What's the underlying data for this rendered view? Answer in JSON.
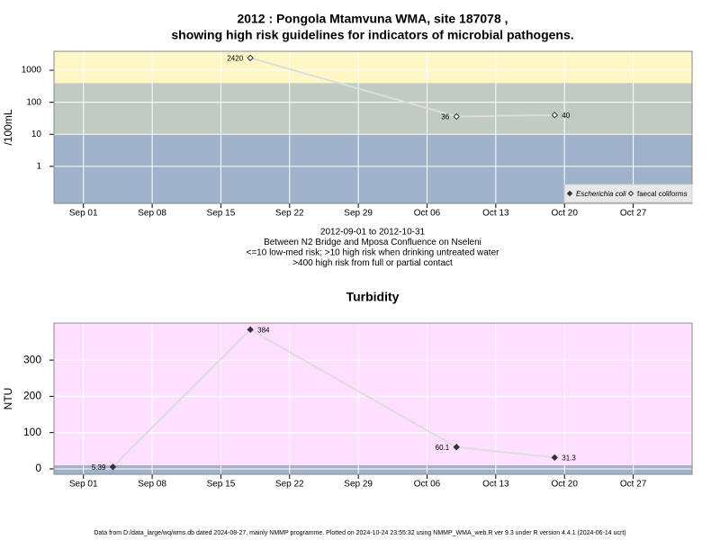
{
  "chart_data": [
    {
      "type": "line",
      "title": [
        "2012 : Pongola Mtamvuna WMA, site 187078 ,",
        "showing high risk guidelines for indicators of microbial pathogens."
      ],
      "ylabel": "/100mL",
      "log_scale": true,
      "grid": true,
      "legend": "bottom right",
      "x": [
        "2012-09-18",
        "2012-10-09",
        "2012-10-19"
      ],
      "series": [
        {
          "name": "Escherichia coli",
          "color": "#333333",
          "marker": "filled",
          "values": [
            null,
            null,
            null
          ]
        },
        {
          "name": "faecal coliforms",
          "color": "#333333",
          "marker": "open",
          "values": [
            2420,
            36,
            40
          ]
        }
      ],
      "line_color": "#dddddd",
      "band_breaks": [
        10,
        400
      ],
      "band_colors": [
        "#a0b2cb",
        "#c1cbc1",
        "#fff7c6"
      ],
      "xlim": [
        "2012-08-29",
        "2012-11-02"
      ],
      "xticks": [
        {
          "value": "2012-09-01",
          "label": "Sep 01"
        },
        {
          "value": "2012-09-08",
          "label": "Sep 08"
        },
        {
          "value": "2012-09-15",
          "label": "Sep 15"
        },
        {
          "value": "2012-09-22",
          "label": "Sep 22"
        },
        {
          "value": "2012-09-29",
          "label": "Sep 29"
        },
        {
          "value": "2012-10-06",
          "label": "Oct 06"
        },
        {
          "value": "2012-10-13",
          "label": "Oct 13"
        },
        {
          "value": "2012-10-20",
          "label": "Oct 20"
        },
        {
          "value": "2012-10-27",
          "label": "Oct 27"
        }
      ],
      "ylim": [
        0.07,
        3900
      ],
      "yticks": [
        1,
        10,
        100,
        1000
      ],
      "notes": [
        "2012-09-01 to 2012-10-31",
        "Between N2 Bridge and Mposa Confluence on Nseleni",
        "<=10 low-med risk; >10 high risk when drinking untreated water",
        ">400 high risk from full or partial contact"
      ]
    },
    {
      "type": "line",
      "title": [
        "Turbidity"
      ],
      "ylabel": "NTU",
      "log_scale": false,
      "grid": true,
      "x": [
        "2012-09-04",
        "2012-09-18",
        "2012-10-09",
        "2012-10-19"
      ],
      "series": [
        {
          "name": "Turbidity",
          "color": "#333333",
          "marker": "filled",
          "values": [
            5.39,
            384,
            60.1,
            31.3
          ]
        }
      ],
      "line_color": "#dddddd",
      "band_breaks": [
        10
      ],
      "band_colors": [
        "#a0b2cb",
        "#ffdfff"
      ],
      "xlim": [
        "2012-08-29",
        "2012-11-02"
      ],
      "xticks": [
        {
          "value": "2012-09-01",
          "label": "Sep 01"
        },
        {
          "value": "2012-09-08",
          "label": "Sep 08"
        },
        {
          "value": "2012-09-15",
          "label": "Sep 15"
        },
        {
          "value": "2012-09-22",
          "label": "Sep 22"
        },
        {
          "value": "2012-09-29",
          "label": "Sep 29"
        },
        {
          "value": "2012-10-06",
          "label": "Oct 06"
        },
        {
          "value": "2012-10-13",
          "label": "Oct 13"
        },
        {
          "value": "2012-10-20",
          "label": "Oct 20"
        },
        {
          "value": "2012-10-27",
          "label": "Oct 27"
        }
      ],
      "ylim": [
        -15,
        402
      ],
      "yticks": [
        0,
        100,
        200,
        300
      ]
    }
  ],
  "footer": "Data from D:/data_large/wq/wms.db dated 2024-08-27, mainly NMMP programme. Plotted on 2024-10-24 23:55:32 using NMMP_WMA_web.R ver 9.3 under R version 4.4.1 (2024-06-14 ucrt)"
}
